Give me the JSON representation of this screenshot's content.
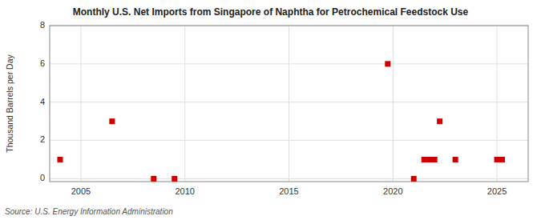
{
  "chart_data": {
    "type": "scatter",
    "title": "Monthly U.S. Net Imports from Singapore of Naphtha for Petrochemical Feedstock Use",
    "y_label": "Thousand Barrels per Day",
    "source": "Source: U.S. Energy Information Administration",
    "x": [
      2004.0,
      2006.5,
      2008.5,
      2009.5,
      2019.75,
      2021.0,
      2021.5,
      2021.75,
      2022.0,
      2022.25,
      2023.0,
      2025.0,
      2025.25
    ],
    "values": [
      1,
      3,
      0.0,
      0.0,
      6.0,
      0.0,
      1,
      1,
      1,
      3,
      1,
      1,
      1
    ],
    "color": "#cc0000",
    "marker": "square",
    "xlim": [
      2003.5,
      2026.5
    ],
    "ylim": [
      -0.15,
      8
    ],
    "xticks": [
      2005,
      2010,
      2015,
      2020,
      2025
    ],
    "yticks": [
      0,
      2,
      4,
      6,
      8
    ],
    "grid": true
  }
}
